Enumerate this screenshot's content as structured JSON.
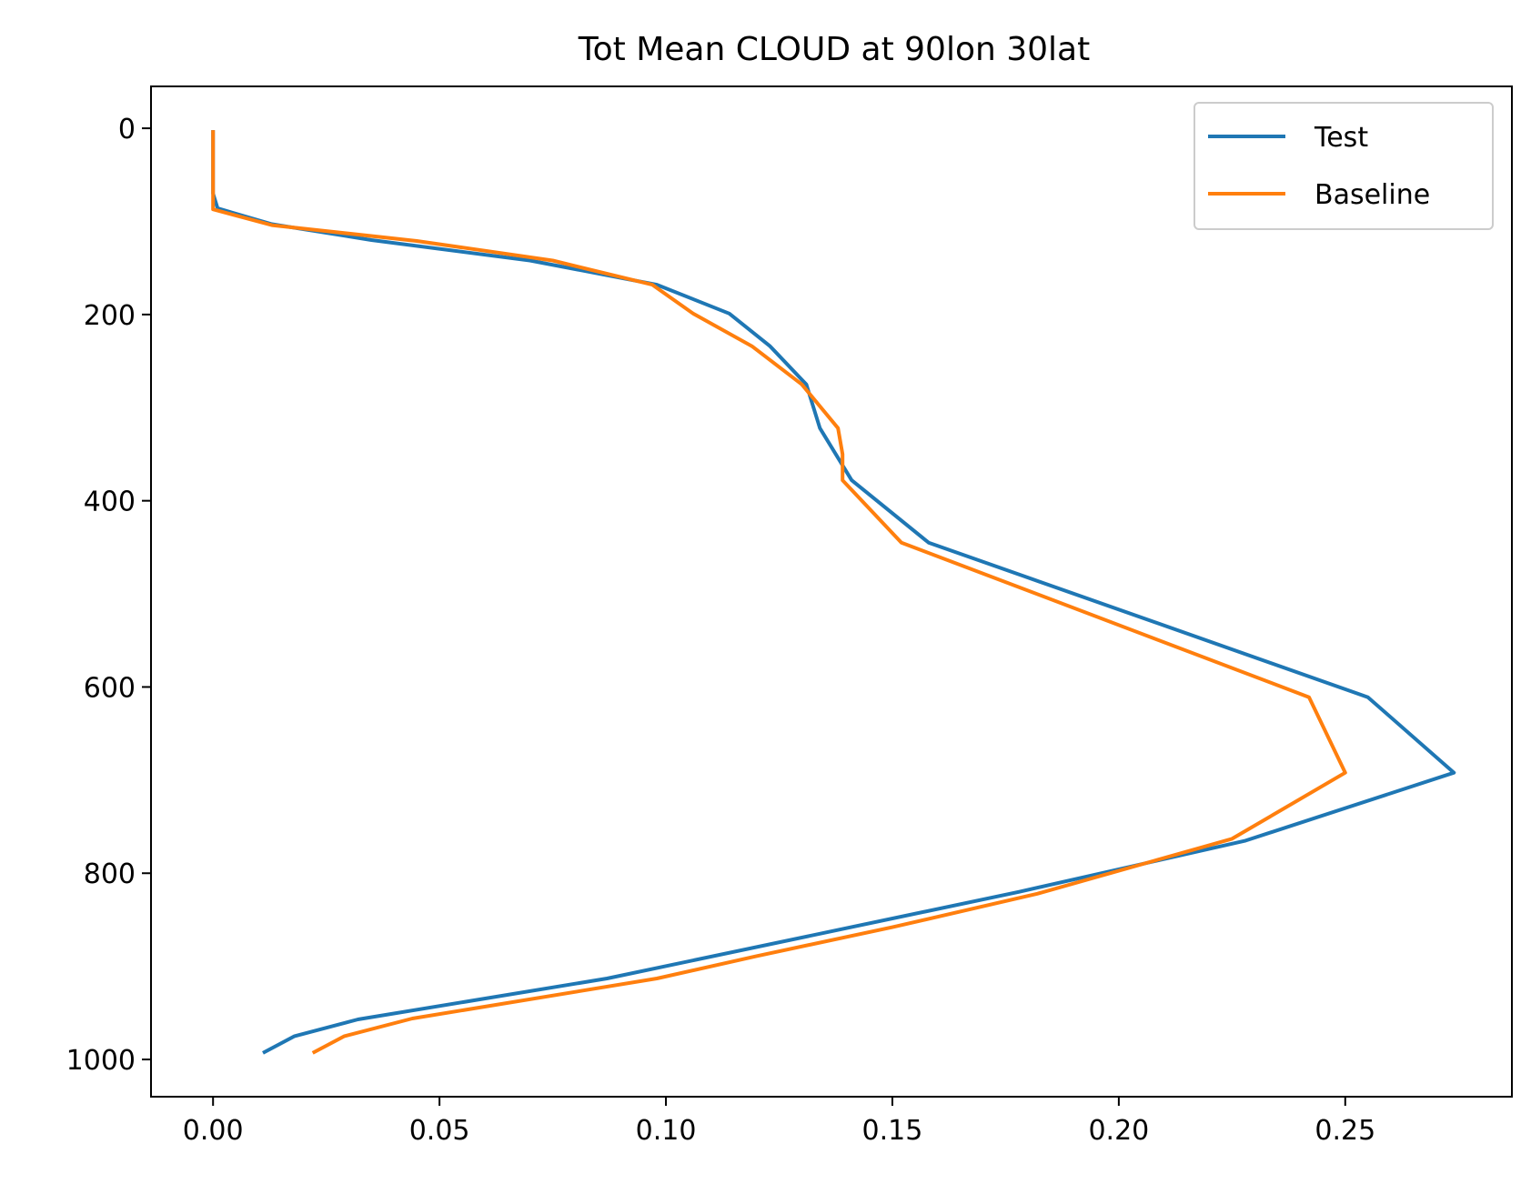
{
  "chart_data": {
    "type": "line",
    "title": "Tot Mean CLOUD at 90lon 30lat",
    "xlabel": "",
    "ylabel": "",
    "xlim": [
      -0.0137,
      0.2868
    ],
    "ylim": [
      1040,
      -45
    ],
    "y_inverted": true,
    "grid": false,
    "legend_position": "top-right",
    "xticks": [
      0.0,
      0.05,
      0.1,
      0.15,
      0.2,
      0.25
    ],
    "xtick_labels": [
      "0.00",
      "0.05",
      "0.10",
      "0.15",
      "0.20",
      "0.25"
    ],
    "yticks": [
      0,
      200,
      400,
      600,
      800,
      1000
    ],
    "ytick_labels": [
      "0",
      "200",
      "400",
      "600",
      "800",
      "1000"
    ],
    "series": [
      {
        "name": "Test",
        "color": "#1f77b4",
        "x": [
          0.0,
          0.0,
          0.0,
          0.001,
          0.013,
          0.035,
          0.07,
          0.098,
          0.114,
          0.123,
          0.131,
          0.134,
          0.141,
          0.158,
          0.255,
          0.274,
          0.228,
          0.178,
          0.087,
          0.032,
          0.018,
          0.011
        ],
        "y": [
          2,
          40,
          70,
          86,
          103,
          120,
          142,
          168,
          199,
          234,
          275,
          322,
          378,
          445,
          611,
          692,
          765,
          820,
          913,
          957,
          975,
          993
        ]
      },
      {
        "name": "Baseline",
        "color": "#ff7f0e",
        "x": [
          0.0,
          0.0,
          0.0,
          0.0,
          0.013,
          0.045,
          0.075,
          0.097,
          0.106,
          0.119,
          0.13,
          0.138,
          0.139,
          0.139,
          0.152,
          0.242,
          0.25,
          0.225,
          0.182,
          0.15,
          0.12,
          0.098,
          0.044,
          0.029,
          0.022
        ],
        "y": [
          2,
          40,
          70,
          87,
          104,
          121,
          142,
          168,
          199,
          234,
          275,
          322,
          350,
          378,
          445,
          611,
          692,
          763,
          822,
          858,
          889,
          913,
          956,
          975,
          993
        ]
      }
    ]
  }
}
